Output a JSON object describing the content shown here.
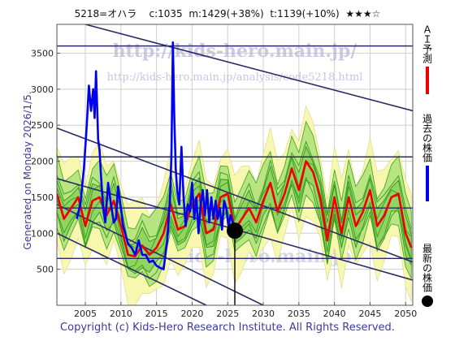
{
  "header": {
    "code": "5218=オハラ",
    "current": "c:1035",
    "middle": "m:1429(+38%)",
    "top": "t:1139(+10%)",
    "stars": "★★★☆"
  },
  "generated_note": "Generated on Monday 2026/1/5.",
  "copyright": "Copyright (c) Kids-Hero Research Institute. All Rights Reserved.",
  "watermark": {
    "url": "http://kids-hero.main.jp/",
    "analysis_url": "http://kids-hero.main.jp/analysis/code5218.html",
    "email": "info@kids-hero.main.jp"
  },
  "legend": {
    "ai_forecast": "ＡＩ予測",
    "past_price": "過去の株価",
    "latest_price": "最新の株価"
  },
  "colors": {
    "ai_forecast": "#ee0000",
    "past_price": "#0000ee",
    "band_outer": "#f7f7b0",
    "band_inner": "#66cc33",
    "trend_lines": "#2a2a66",
    "text": "#3a3a9a"
  },
  "chart_data": {
    "type": "line",
    "xlim": [
      2001,
      2051
    ],
    "ylim": [
      0,
      3900
    ],
    "x_ticks": [
      2005,
      2010,
      2015,
      2020,
      2025,
      2030,
      2035,
      2040,
      2045,
      2050
    ],
    "y_ticks": [
      500,
      1000,
      1500,
      2000,
      2500,
      3000,
      3500
    ],
    "grid": true,
    "latest_point": {
      "x": 2026.0,
      "y": 1035
    },
    "horizontal_levels": [
      3600,
      2060,
      1350,
      650
    ],
    "trend_lines": [
      {
        "from": [
          2005,
          3900
        ],
        "to": [
          2051,
          2700
        ]
      },
      {
        "from": [
          2001,
          2460
        ],
        "to": [
          2051,
          600
        ]
      },
      {
        "from": [
          2001,
          1760
        ],
        "to": [
          2051,
          350
        ]
      },
      {
        "from": [
          2001,
          1400
        ],
        "to": [
          2030,
          0
        ]
      },
      {
        "from": [
          2001,
          1000
        ],
        "to": [
          2022,
          0
        ]
      }
    ],
    "series": [
      {
        "name": "過去の株価",
        "x": [
          2003.8,
          2004.3,
          2004.8,
          2005.2,
          2005.5,
          2005.8,
          2006.1,
          2006.3,
          2006.5,
          2006.8,
          2007.0,
          2007.2,
          2007.5,
          2007.8,
          2008.2,
          2008.6,
          2009.0,
          2009.3,
          2009.6,
          2010.0,
          2010.3,
          2010.6,
          2011.0,
          2011.5,
          2012.0,
          2012.5,
          2013.0,
          2013.5,
          2014.0,
          2014.5,
          2015.0,
          2015.5,
          2016.0,
          2016.5,
          2016.9,
          2017.1,
          2017.3,
          2017.5,
          2017.7,
          2017.9,
          2018.2,
          2018.5,
          2018.8,
          2019.1,
          2019.4,
          2019.7,
          2020.0,
          2020.3,
          2020.6,
          2020.9,
          2021.2,
          2021.5,
          2021.8,
          2022.1,
          2022.4,
          2022.7,
          2023.0,
          2023.3,
          2023.6,
          2023.9,
          2024.2,
          2024.5,
          2024.8,
          2025.1,
          2025.4,
          2025.7,
          2026.0
        ],
        "y": [
          1200,
          1400,
          1900,
          2500,
          3050,
          2700,
          3000,
          2600,
          3250,
          2300,
          2150,
          1800,
          1350,
          1150,
          1700,
          1400,
          1150,
          1200,
          1650,
          1350,
          1100,
          1000,
          850,
          800,
          700,
          900,
          700,
          700,
          600,
          620,
          550,
          520,
          500,
          900,
          1500,
          2100,
          3650,
          2600,
          1900,
          1600,
          1400,
          2200,
          1500,
          1100,
          1400,
          1300,
          1700,
          1200,
          1500,
          1000,
          1400,
          1600,
          1250,
          1600,
          1150,
          1500,
          1200,
          1450,
          1200,
          1350,
          1050,
          1450,
          1350,
          1100,
          1250,
          1150,
          1035
        ]
      },
      {
        "name": "ＡＩ予測",
        "x": [
          2001.0,
          2002.0,
          2003.0,
          2004.0,
          2005.0,
          2006.0,
          2007.0,
          2008.0,
          2009.0,
          2010.0,
          2011.0,
          2012.0,
          2013.0,
          2014.0,
          2015.0,
          2016.0,
          2017.0,
          2018.0,
          2019.0,
          2020.0,
          2021.0,
          2022.0,
          2023.0,
          2024.0,
          2025.0,
          2026.0,
          2027.0,
          2028.0,
          2029.0,
          2030.0,
          2031.0,
          2032.0,
          2033.0,
          2034.0,
          2035.0,
          2036.0,
          2037.0,
          2038.0,
          2039.0,
          2040.0,
          2041.0,
          2042.0,
          2043.0,
          2044.0,
          2045.0,
          2046.0,
          2047.0,
          2048.0,
          2049.0,
          2050.0,
          2050.8
        ],
        "y": [
          1550,
          1200,
          1350,
          1500,
          1100,
          1450,
          1500,
          1250,
          1450,
          1100,
          700,
          680,
          830,
          700,
          800,
          1000,
          1400,
          1050,
          1100,
          1400,
          1550,
          1000,
          1050,
          1500,
          1550,
          1050,
          1200,
          1350,
          1150,
          1450,
          1700,
          1300,
          1550,
          1900,
          1600,
          2000,
          1850,
          1500,
          900,
          1500,
          1000,
          1500,
          1100,
          1300,
          1600,
          1100,
          1250,
          1500,
          1550,
          1000,
          800
        ]
      }
    ]
  }
}
